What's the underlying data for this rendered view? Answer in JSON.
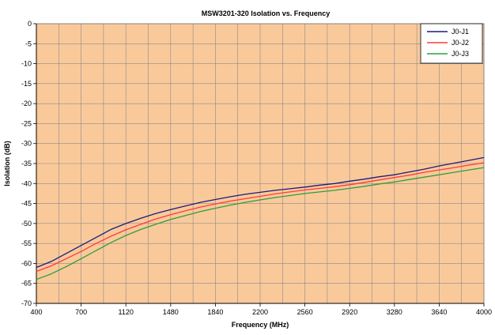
{
  "chart_data": {
    "type": "line",
    "title": "MSW3201-320 Isolation vs. Frequency",
    "xlabel": "Frequency (MHz)",
    "ylabel": "Isolation (dB)",
    "xlim": [
      400,
      4000
    ],
    "ylim": [
      -70,
      0
    ],
    "x_ticks": [
      "400",
      "700",
      "1120",
      "1480",
      "1840",
      "2200",
      "2560",
      "2920",
      "3280",
      "3640",
      "4000"
    ],
    "y_ticks": [
      "0",
      "-5",
      "-10",
      "-15",
      "-20",
      "-25",
      "-30",
      "-35",
      "-40",
      "-45",
      "-50",
      "-55",
      "-60",
      "-65",
      "-70"
    ],
    "grid": true,
    "legend_position": "top-right",
    "plot_background": "#fac99a",
    "series": [
      {
        "name": "J0-J1",
        "color": "#1c1c7a",
        "x": [
          400,
          520,
          640,
          760,
          880,
          1000,
          1120,
          1240,
          1360,
          1480,
          1600,
          1720,
          1840,
          1960,
          2080,
          2200,
          2320,
          2440,
          2560,
          2680,
          2800,
          2920,
          3040,
          3160,
          3280,
          3400,
          3520,
          3640,
          3760,
          3880,
          4000
        ],
        "y": [
          -61.0,
          -59.5,
          -57.5,
          -55.5,
          -53.5,
          -51.5,
          -50.0,
          -48.7,
          -47.5,
          -46.5,
          -45.6,
          -44.7,
          -44.0,
          -43.3,
          -42.7,
          -42.2,
          -41.7,
          -41.3,
          -40.9,
          -40.4,
          -40.0,
          -39.4,
          -38.9,
          -38.3,
          -37.8,
          -37.1,
          -36.4,
          -35.6,
          -34.9,
          -34.2,
          -33.5
        ]
      },
      {
        "name": "J0-J2",
        "color": "#ff3b3b",
        "x": [
          400,
          520,
          640,
          760,
          880,
          1000,
          1120,
          1240,
          1360,
          1480,
          1600,
          1720,
          1840,
          1960,
          2080,
          2200,
          2320,
          2440,
          2560,
          2680,
          2800,
          2920,
          3040,
          3160,
          3280,
          3400,
          3520,
          3640,
          3760,
          3880,
          4000
        ],
        "y": [
          -62.0,
          -60.6,
          -58.8,
          -57.0,
          -55.0,
          -53.2,
          -51.6,
          -50.2,
          -48.9,
          -47.8,
          -46.8,
          -45.9,
          -45.1,
          -44.4,
          -43.8,
          -43.2,
          -42.6,
          -42.1,
          -41.6,
          -41.2,
          -40.8,
          -40.3,
          -39.7,
          -39.1,
          -38.5,
          -37.9,
          -37.2,
          -36.6,
          -36.0,
          -35.4,
          -34.8
        ]
      },
      {
        "name": "J0-J3",
        "color": "#2e9e3e",
        "x": [
          400,
          520,
          640,
          760,
          880,
          1000,
          1120,
          1240,
          1360,
          1480,
          1600,
          1720,
          1840,
          1960,
          2080,
          2200,
          2320,
          2440,
          2560,
          2680,
          2800,
          2920,
          3040,
          3160,
          3280,
          3400,
          3520,
          3640,
          3760,
          3880,
          4000
        ],
        "y": [
          -64.0,
          -62.6,
          -60.8,
          -58.8,
          -56.8,
          -54.8,
          -53.0,
          -51.5,
          -50.2,
          -49.0,
          -48.0,
          -47.0,
          -46.2,
          -45.4,
          -44.7,
          -44.1,
          -43.5,
          -43.0,
          -42.5,
          -42.1,
          -41.7,
          -41.2,
          -40.7,
          -40.1,
          -39.6,
          -39.0,
          -38.4,
          -37.8,
          -37.2,
          -36.6,
          -36.0
        ]
      }
    ]
  }
}
